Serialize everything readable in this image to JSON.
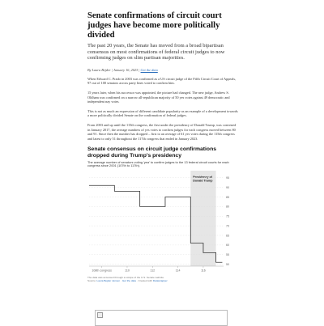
{
  "article": {
    "headline": "Senate confirmations of circuit court judges have become more politically divided",
    "dek": "The past 20 years, the Senate has moved from a broad bipartisan consensus on most confirmations of federal circuit judges to now confirming judges on slim partisan majorities.",
    "byline": {
      "author": "By Laura Bejder",
      "date": "January 16, 2023",
      "data_link": "Get the data"
    },
    "paragraphs": [
      "When Edward C. Prado in 2003 was confirmed as a US circuit judge of the Fifth Circuit Court of Appeals, 97 out of 100 senators across party lines voted to confirm him.",
      "15 years later, when his successor was appointed, the picture had changed. The new judge, Andrew S. Oldham was confirmed on a narrow all-republican majority of 50 yes votes against 49 democratic and independent nay votes.",
      "This is not as much an expression of different candidate popularity as an example of a development towards a more politically divided Senate on the confirmation of federal judges.",
      "From 2003 and up until the 115th congress, the first under the presidency of Donald Trump, was convened in January 2017, the average numbers of yes votes to confirm judges for each congress moved between 80 and 91. Since then the number has dropped – first to an average of 61 yes votes during the 115th congress and latest to only 51 throughout the 117th congress that ended in January 2023."
    ]
  },
  "chart": {
    "title": "Senate consensus on circuit judge confirmations dropped during Trump's presidency",
    "subtitle": "The average number of senators voting 'yea' to confirm judges to the 13 federal circuit courts for each congress since 2001 (107th to 117th).",
    "annotation_line1": "Presidency of",
    "annotation_line2": "Donald Trump",
    "notes": "The data was accessed through a scrape of the U.S. Senate website.",
    "source_prefix": "Source:",
    "source_author": "Laura Bejder Jensen",
    "source_link": "Get the data",
    "source_suffix": "Created with",
    "source_tool": "Datawrapper",
    "colors": {
      "line": "#333333",
      "band": "#e6e6e6",
      "grid": "#dddddd",
      "text": "#666666"
    }
  },
  "chart_data": {
    "type": "line",
    "title": "Senate consensus on circuit judge confirmations dropped during Trump's presidency",
    "xlabel": "",
    "ylabel": "",
    "x": [
      107,
      108,
      109,
      110,
      111,
      112,
      113,
      114,
      115,
      116,
      117
    ],
    "x_tick_values": [
      108,
      110,
      112,
      114,
      116
    ],
    "x_tick_labels": [
      "108th congress",
      "110",
      "112",
      "114",
      "116"
    ],
    "values": [
      91,
      91,
      88,
      88,
      80,
      80,
      85,
      85,
      61,
      56,
      51
    ],
    "y_ticks": [
      95,
      90,
      85,
      80,
      75,
      70,
      65,
      60,
      55,
      50
    ],
    "ylim": [
      49,
      97
    ],
    "xlim": [
      107,
      117.6
    ],
    "shaded_range": [
      115,
      117
    ],
    "grid": true
  }
}
